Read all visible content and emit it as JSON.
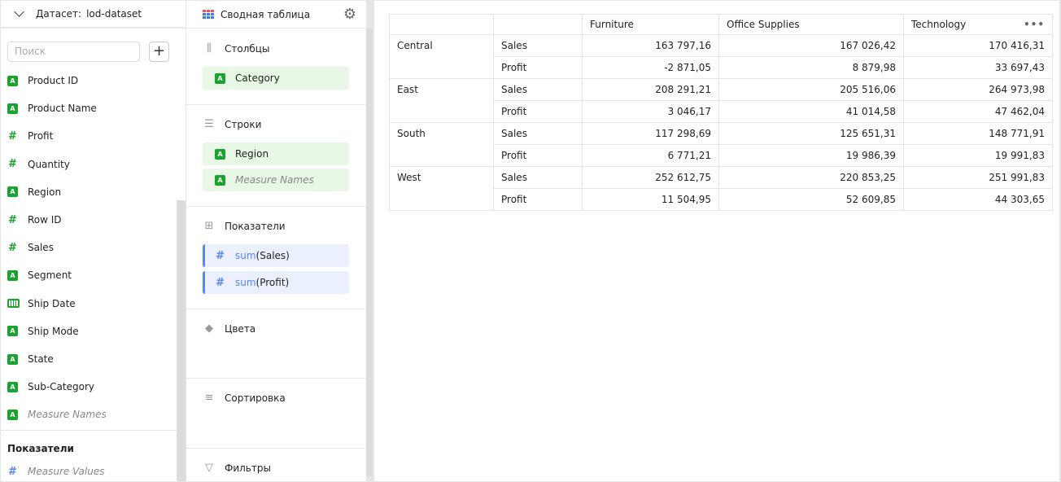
{
  "dataset": {
    "label": "Датасет:",
    "name": "lod-dataset"
  },
  "search": {
    "placeholder": "Поиск",
    "add": "+"
  },
  "fields": [
    {
      "label": "Product ID",
      "type": "string"
    },
    {
      "label": "Product Name",
      "type": "string"
    },
    {
      "label": "Profit",
      "type": "number"
    },
    {
      "label": "Quantity",
      "type": "number"
    },
    {
      "label": "Region",
      "type": "string"
    },
    {
      "label": "Row ID",
      "type": "number"
    },
    {
      "label": "Sales",
      "type": "number"
    },
    {
      "label": "Segment",
      "type": "string"
    },
    {
      "label": "Ship Date",
      "type": "date"
    },
    {
      "label": "Ship Mode",
      "type": "string"
    },
    {
      "label": "State",
      "type": "string"
    },
    {
      "label": "Sub-Category",
      "type": "string"
    },
    {
      "label": "Measure Names",
      "type": "string"
    }
  ],
  "measures_section": {
    "title": "Показатели",
    "items": [
      {
        "label": "Measure Values"
      }
    ]
  },
  "viz": {
    "title": "Сводная таблица",
    "colors": [
      "#f04e4e",
      "#f04e4e",
      "#f04e4e",
      "#3b7de8",
      "#3b7de8",
      "#3b7de8",
      "#3b7de8",
      "#3b7de8",
      "#3b7de8"
    ]
  },
  "sections": {
    "columns": {
      "title": "Столбцы",
      "items": [
        "Category"
      ]
    },
    "rows": {
      "title": "Строки",
      "items": [
        "Region",
        "Measure Names"
      ]
    },
    "measures": {
      "title": "Показатели",
      "items": [
        {
          "fn": "sum",
          "field": "(Sales)"
        },
        {
          "fn": "sum",
          "field": "(Profit)"
        }
      ]
    },
    "colors": {
      "title": "Цвета"
    },
    "sort": {
      "title": "Сортировка"
    },
    "filters": {
      "title": "Фильтры"
    }
  },
  "table": {
    "columns": [
      "Furniture",
      "Office Supplies",
      "Technology"
    ],
    "more": "•••",
    "rows": [
      {
        "region": "Central",
        "measures": [
          {
            "name": "Sales",
            "values": [
              "163 797,16",
              "167 026,42",
              "170 416,31"
            ]
          },
          {
            "name": "Profit",
            "values": [
              "-2 871,05",
              "8 879,98",
              "33 697,43"
            ]
          }
        ]
      },
      {
        "region": "East",
        "measures": [
          {
            "name": "Sales",
            "values": [
              "208 291,21",
              "205 516,06",
              "264 973,98"
            ]
          },
          {
            "name": "Profit",
            "values": [
              "3 046,17",
              "41 014,58",
              "47 462,04"
            ]
          }
        ]
      },
      {
        "region": "South",
        "measures": [
          {
            "name": "Sales",
            "values": [
              "117 298,69",
              "125 651,31",
              "148 771,91"
            ]
          },
          {
            "name": "Profit",
            "values": [
              "6 771,21",
              "19 986,39",
              "19 991,83"
            ]
          }
        ]
      },
      {
        "region": "West",
        "measures": [
          {
            "name": "Sales",
            "values": [
              "252 612,75",
              "220 853,25",
              "251 991,83"
            ]
          },
          {
            "name": "Profit",
            "values": [
              "11 504,95",
              "52 609,85",
              "44 303,65"
            ]
          }
        ]
      }
    ]
  }
}
